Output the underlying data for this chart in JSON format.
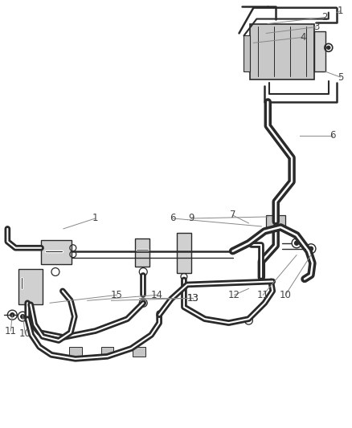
{
  "background_color": "#ffffff",
  "line_color": "#2a2a2a",
  "label_color": "#444444",
  "leader_color": "#888888",
  "fig_width": 4.38,
  "fig_height": 5.33,
  "dpi": 100
}
